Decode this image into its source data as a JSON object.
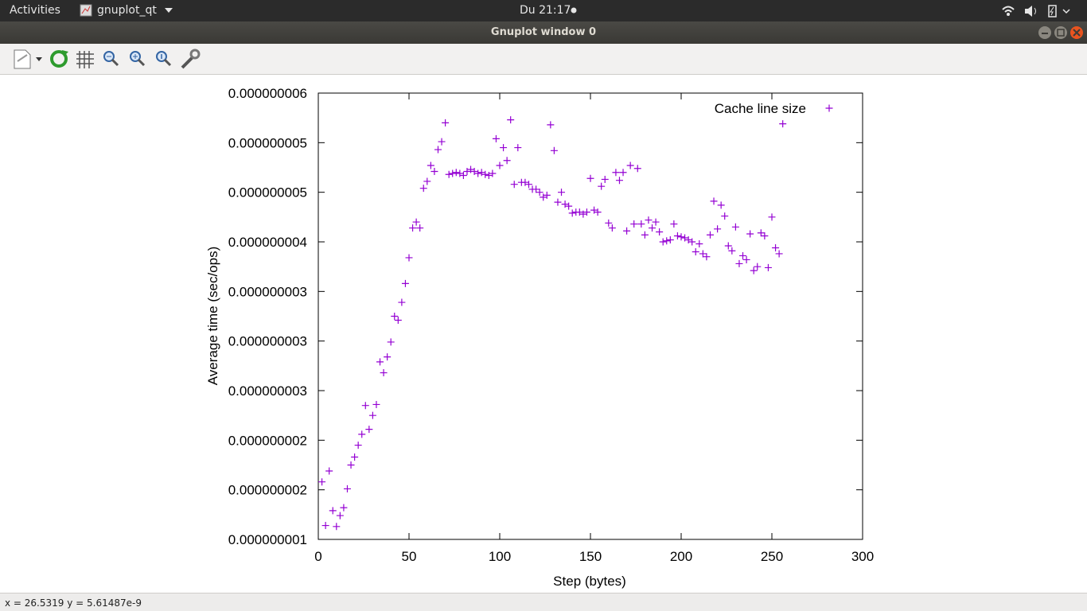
{
  "top_bar": {
    "activities": "Activities",
    "app_menu": "gnuplot_qt",
    "clock": "Du 21:17"
  },
  "window": {
    "title": "Gnuplot window 0"
  },
  "status_bar": {
    "text": "x = 26.5319 y = 5.61487e-9"
  },
  "chart_data": {
    "type": "scatter",
    "x_label": "Step (bytes)",
    "y_label": "Average time (sec/ops)",
    "xlim": [
      0,
      300
    ],
    "xticks": [
      0,
      50,
      100,
      150,
      200,
      250,
      300
    ],
    "ylim": [
      1e-09,
      5.5e-09
    ],
    "yticks": [
      {
        "value": 1e-09,
        "label": "0.000000001"
      },
      {
        "value": 1.5e-09,
        "label": "0.000000002"
      },
      {
        "value": 2e-09,
        "label": "0.000000002"
      },
      {
        "value": 2.5e-09,
        "label": "0.000000003"
      },
      {
        "value": 3e-09,
        "label": "0.000000003"
      },
      {
        "value": 3.5e-09,
        "label": "0.000000003"
      },
      {
        "value": 4e-09,
        "label": "0.000000004"
      },
      {
        "value": 4.5e-09,
        "label": "0.000000005"
      },
      {
        "value": 5e-09,
        "label": "0.000000005"
      },
      {
        "value": 5.5e-09,
        "label": "0.000000006"
      }
    ],
    "legend": "top-right",
    "series": [
      {
        "name": "Cache line size",
        "color": "#9400d3",
        "x": [
          2,
          4,
          6,
          8,
          10,
          12,
          14,
          16,
          18,
          20,
          22,
          24,
          26,
          28,
          30,
          32,
          34,
          36,
          38,
          40,
          42,
          44,
          46,
          48,
          50,
          52,
          54,
          56,
          58,
          60,
          62,
          64,
          66,
          68,
          70,
          72,
          74,
          76,
          78,
          80,
          82,
          84,
          86,
          88,
          90,
          92,
          94,
          96,
          98,
          100,
          102,
          104,
          106,
          108,
          110,
          112,
          114,
          116,
          118,
          120,
          122,
          124,
          126,
          128,
          130,
          132,
          134,
          136,
          138,
          140,
          142,
          144,
          146,
          148,
          150,
          152,
          154,
          156,
          158,
          160,
          162,
          164,
          166,
          168,
          170,
          172,
          174,
          176,
          178,
          180,
          182,
          184,
          186,
          188,
          190,
          192,
          194,
          196,
          198,
          200,
          202,
          204,
          206,
          208,
          210,
          212,
          214,
          216,
          218,
          220,
          222,
          224,
          226,
          228,
          230,
          232,
          234,
          236,
          238,
          240,
          242,
          244,
          246,
          248,
          250,
          252,
          254,
          256
        ],
        "values": [
          1.58e-09,
          1.14e-09,
          1.69e-09,
          1.29e-09,
          1.13e-09,
          1.24e-09,
          1.32e-09,
          1.51e-09,
          1.75e-09,
          1.83e-09,
          1.95e-09,
          2.06e-09,
          2.35e-09,
          2.11e-09,
          2.25e-09,
          2.36e-09,
          2.79e-09,
          2.68e-09,
          2.84e-09,
          2.99e-09,
          3.25e-09,
          3.21e-09,
          3.39e-09,
          3.58e-09,
          3.84e-09,
          4.14e-09,
          4.2e-09,
          4.14e-09,
          4.54e-09,
          4.61e-09,
          4.77e-09,
          4.71e-09,
          4.93e-09,
          5.01e-09,
          5.2e-09,
          4.68e-09,
          4.69e-09,
          4.7e-09,
          4.69e-09,
          4.67e-09,
          4.71e-09,
          4.73e-09,
          4.71e-09,
          4.69e-09,
          4.7e-09,
          4.68e-09,
          4.67e-09,
          4.69e-09,
          5.04e-09,
          4.77e-09,
          4.95e-09,
          4.82e-09,
          5.23e-09,
          4.58e-09,
          4.95e-09,
          4.6e-09,
          4.6e-09,
          4.58e-09,
          4.53e-09,
          4.53e-09,
          4.5e-09,
          4.45e-09,
          4.47e-09,
          5.18e-09,
          4.92e-09,
          4.4e-09,
          4.5e-09,
          4.38e-09,
          4.36e-09,
          4.29e-09,
          4.3e-09,
          4.3e-09,
          4.28e-09,
          4.3e-09,
          4.64e-09,
          4.32e-09,
          4.3e-09,
          4.56e-09,
          4.63e-09,
          4.19e-09,
          4.14e-09,
          4.7e-09,
          4.62e-09,
          4.7e-09,
          4.11e-09,
          4.77e-09,
          4.18e-09,
          4.74e-09,
          4.18e-09,
          4.07e-09,
          4.22e-09,
          4.14e-09,
          4.2e-09,
          4.1e-09,
          4e-09,
          4.01e-09,
          4.02e-09,
          4.18e-09,
          4.06e-09,
          4.05e-09,
          4.04e-09,
          4.02e-09,
          4e-09,
          3.9e-09,
          3.98e-09,
          3.88e-09,
          3.85e-09,
          4.07e-09,
          4.41e-09,
          4.13e-09,
          4.37e-09,
          4.26e-09,
          3.96e-09,
          3.91e-09,
          4.15e-09,
          3.78e-09,
          3.86e-09,
          3.82e-09,
          4.08e-09,
          3.71e-09,
          3.75e-09,
          4.09e-09,
          4.06e-09,
          3.74e-09,
          4.25e-09,
          3.94e-09,
          3.88e-09,
          5.19e-09
        ]
      }
    ]
  }
}
